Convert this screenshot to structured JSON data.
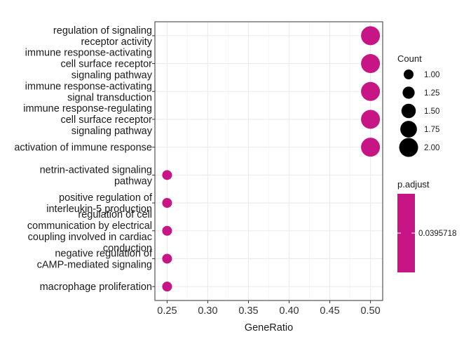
{
  "chart_data": {
    "type": "scatter",
    "xlabel": "GeneRatio",
    "ylabel": "",
    "xlim": [
      0.235,
      0.515
    ],
    "x_ticks": [
      "0.25",
      "0.30",
      "0.35",
      "0.40",
      "0.45",
      "0.50"
    ],
    "grid": true,
    "legend_position": "right",
    "terms": [
      {
        "label": "regulation of signaling\nreceptor activity",
        "gene_ratio": 0.5,
        "count": 2,
        "p_adjust": 0.0395718
      },
      {
        "label": "immune response-activating\ncell surface receptor\nsignaling pathway",
        "gene_ratio": 0.5,
        "count": 2,
        "p_adjust": 0.0395718
      },
      {
        "label": "immune response-activating\nsignal transduction",
        "gene_ratio": 0.5,
        "count": 2,
        "p_adjust": 0.0395718
      },
      {
        "label": "immune response-regulating\ncell surface receptor\nsignaling pathway",
        "gene_ratio": 0.5,
        "count": 2,
        "p_adjust": 0.0395718
      },
      {
        "label": "activation of immune response",
        "gene_ratio": 0.5,
        "count": 2,
        "p_adjust": 0.0395718
      },
      {
        "label": "netrin-activated signaling\npathway",
        "gene_ratio": 0.25,
        "count": 1,
        "p_adjust": 0.0395718
      },
      {
        "label": "positive regulation of\ninterleukin-5 production",
        "gene_ratio": 0.25,
        "count": 1,
        "p_adjust": 0.0395718
      },
      {
        "label": "regulation of cell\ncommunication by electrical\ncoupling involved in cardiac\nconduction",
        "gene_ratio": 0.25,
        "count": 1,
        "p_adjust": 0.0395718
      },
      {
        "label": "negative regulation of\ncAMP-mediated signaling",
        "gene_ratio": 0.25,
        "count": 1,
        "p_adjust": 0.0395718
      },
      {
        "label": "macrophage proliferation",
        "gene_ratio": 0.25,
        "count": 1,
        "p_adjust": 0.0395718
      }
    ],
    "size_legend": {
      "title": "Count",
      "entries": [
        {
          "label": "1.00",
          "value": 1.0
        },
        {
          "label": "1.25",
          "value": 1.25
        },
        {
          "label": "1.50",
          "value": 1.5
        },
        {
          "label": "1.75",
          "value": 1.75
        },
        {
          "label": "2.00",
          "value": 2.0
        }
      ]
    },
    "color_legend": {
      "title": "p.adjust",
      "tick_label": "0.0395718",
      "color": "#c71585"
    },
    "point_color": "#c71585",
    "legend_point_color": "#000000"
  }
}
